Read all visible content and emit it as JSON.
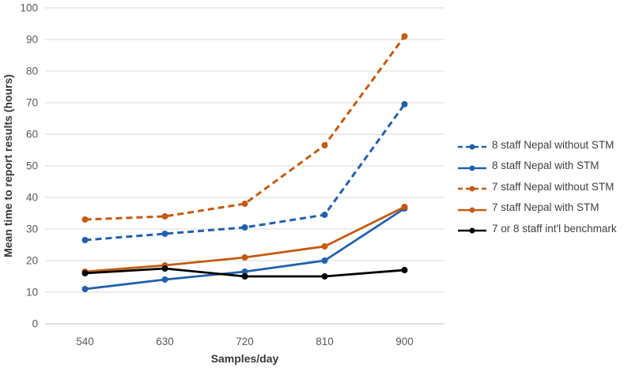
{
  "chart_data": {
    "type": "line",
    "title": "",
    "xlabel": "Samples/day",
    "ylabel": "Mean time to report results (hours)",
    "categories": [
      "540",
      "630",
      "720",
      "810",
      "900"
    ],
    "ylim": [
      0,
      100
    ],
    "ytick_step": 10,
    "grid": true,
    "legend_position": "right",
    "marker": "circle",
    "series": [
      {
        "name": "8 staff Nepal without STM",
        "color": "#2161AD",
        "style": "dashed",
        "values": [
          26.5,
          28.5,
          30.5,
          34.5,
          69.5
        ]
      },
      {
        "name": "8 staff Nepal with STM",
        "color": "#2161AD",
        "style": "solid",
        "values": [
          11,
          14,
          16.5,
          20,
          36.5
        ]
      },
      {
        "name": "7 staff Nepal without STM",
        "color": "#C55A11",
        "style": "dashed",
        "values": [
          33,
          34,
          38,
          56.5,
          91
        ]
      },
      {
        "name": "7 staff Nepal with STM",
        "color": "#C55A11",
        "style": "solid",
        "values": [
          16.5,
          18.5,
          21,
          24.5,
          37
        ]
      },
      {
        "name": "7 or 8 staff int'l benchmark",
        "color": "#000000",
        "style": "solid",
        "values": [
          16,
          17.5,
          15,
          15,
          17
        ]
      }
    ]
  },
  "colors": {
    "background": "#FFFFFF",
    "gridline": "#D9D9D9",
    "axis_line": "#BFBFBF",
    "tick_label": "#595959",
    "axis_title": "#383838",
    "legend_text": "#404040"
  }
}
